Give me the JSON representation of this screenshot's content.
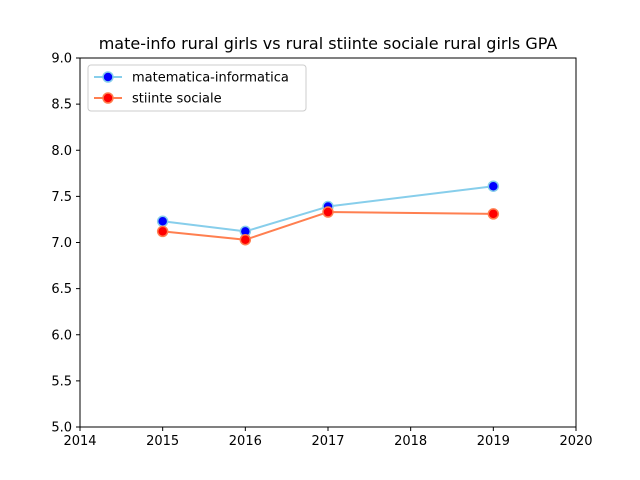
{
  "chart_data": {
    "type": "line",
    "title": "mate-info rural girls vs rural stiinte sociale rural girls GPA",
    "xlabel": "",
    "ylabel": "",
    "xlim": [
      2014,
      2020
    ],
    "ylim": [
      5.0,
      9.0
    ],
    "x_ticks": [
      2014,
      2015,
      2016,
      2017,
      2018,
      2019,
      2020
    ],
    "x_tick_labels": [
      "2014",
      "2015",
      "2016",
      "2017",
      "2018",
      "2019",
      "2020"
    ],
    "y_ticks": [
      5.0,
      5.5,
      6.0,
      6.5,
      7.0,
      7.5,
      8.0,
      8.5,
      9.0
    ],
    "y_tick_labels": [
      "5.0",
      "5.5",
      "6.0",
      "6.5",
      "7.0",
      "7.5",
      "8.0",
      "8.5",
      "9.0"
    ],
    "grid": false,
    "legend_position": "upper-left",
    "series": [
      {
        "name": "matematica-informatica",
        "line_color": "#87ceeb",
        "marker_color": "#0000ff",
        "marker_edge_color": "#87ceeb",
        "x": [
          2015,
          2016,
          2017,
          2019
        ],
        "values": [
          7.23,
          7.12,
          7.39,
          7.61
        ]
      },
      {
        "name": "stiinte sociale",
        "line_color": "#ff7f50",
        "marker_color": "#ff0000",
        "marker_edge_color": "#ff7f50",
        "x": [
          2015,
          2016,
          2017,
          2019
        ],
        "values": [
          7.12,
          7.03,
          7.33,
          7.31
        ]
      }
    ]
  }
}
